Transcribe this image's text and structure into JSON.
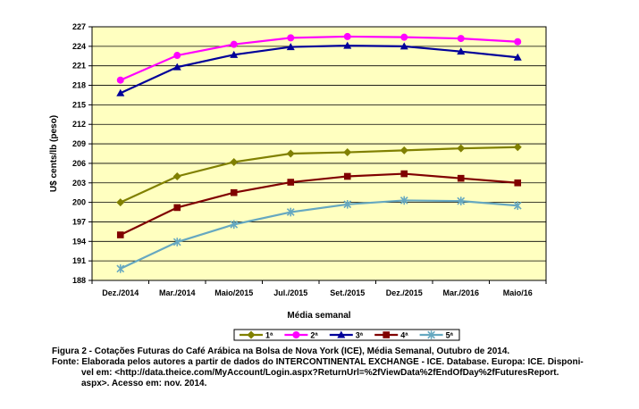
{
  "chart_data": {
    "type": "line",
    "categories": [
      "Dez./2014",
      "Mar./2014",
      "Maio/2015",
      "Jul./2015",
      "Set./2015",
      "Dez./2015",
      "Mar./2016",
      "Maio/16"
    ],
    "ylabel": "U$ cents/lb (peso)",
    "xlabel": "Média semanal",
    "ylim": [
      188,
      227
    ],
    "yticks": [
      "188",
      "191",
      "194",
      "197",
      "200",
      "203",
      "206",
      "209",
      "212",
      "215",
      "218",
      "221",
      "224",
      "227"
    ],
    "grid": true,
    "legend_position": "bottom",
    "series": [
      {
        "name": "1ª",
        "color": "#808000",
        "marker": "diamond",
        "values": [
          200.0,
          204.0,
          206.2,
          207.5,
          207.7,
          208.0,
          208.3,
          208.5
        ]
      },
      {
        "name": "2ª",
        "color": "#ff00ff",
        "marker": "circle",
        "values": [
          218.8,
          222.6,
          224.3,
          225.3,
          225.5,
          225.4,
          225.2,
          224.7
        ]
      },
      {
        "name": "3ª",
        "color": "#000099",
        "marker": "triangle",
        "values": [
          216.8,
          220.8,
          222.7,
          223.9,
          224.1,
          224.0,
          223.2,
          222.3
        ]
      },
      {
        "name": "4ª",
        "color": "#800000",
        "marker": "square",
        "values": [
          195.0,
          199.2,
          201.5,
          203.1,
          204.0,
          204.4,
          203.7,
          203.0
        ]
      },
      {
        "name": "5ª",
        "color": "#66a8c0",
        "marker": "asterisk",
        "values": [
          189.8,
          193.9,
          196.6,
          198.5,
          199.7,
          200.3,
          200.2,
          199.5
        ]
      }
    ]
  },
  "colors": {
    "plot_background": "#ffffc0",
    "gridline": "#000000"
  },
  "caption": {
    "line1": "Figura 2 - Cotações Futuras do Café Arábica na Bolsa de Nova York (ICE), Média Semanal, Outubro de 2014.",
    "line2": "Fonte: Elaborada pelos autores a partir de dados do INTERCONTINENTAL EXCHANGE - ICE. Database. Europa: ICE. Disponi-",
    "line3": "vel    em:    <http://data.theice.com/MyAccount/Login.aspx?ReturnUrl=%2fViewData%2fEndOfDay%2fFuturesReport.",
    "line4": "aspx>. Acesso em: nov. 2014."
  }
}
